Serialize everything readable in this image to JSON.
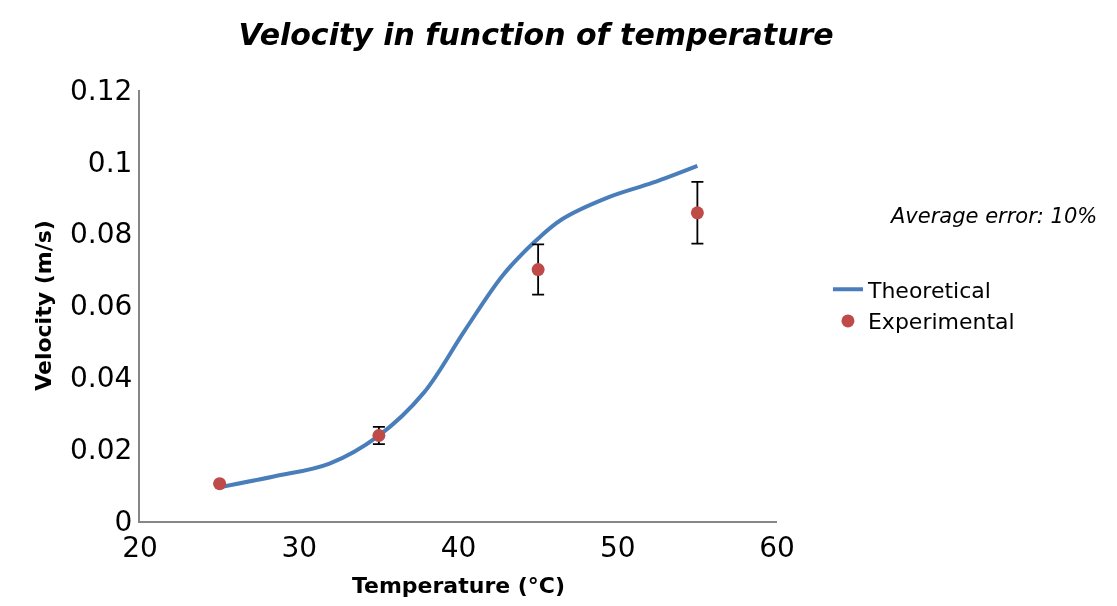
{
  "chart_data": {
    "type": "line",
    "title": "Velocity in function of temperature",
    "xlabel": "Temperature (°C)",
    "ylabel": "Velocity (m/s)",
    "xlim": [
      20,
      60
    ],
    "xticks": [
      20,
      30,
      40,
      50,
      60
    ],
    "ylim": [
      0,
      0.12
    ],
    "yticks": [
      0,
      0.02,
      0.04,
      0.06,
      0.08,
      0.1,
      0.12
    ],
    "legend": "right",
    "annotations": [
      "Average error: 10%"
    ],
    "series": [
      {
        "name": "Theoretical",
        "color": "#4a7ebb",
        "marker": "none",
        "line_style": "solid",
        "x": [
          25,
          28.4,
          31.9,
          35,
          37.8,
          40.4,
          42.8,
          44.8,
          46.5,
          49.4,
          52.2,
          55
        ],
        "values": [
          0.0094,
          0.0124,
          0.016,
          0.0238,
          0.0356,
          0.0531,
          0.0685,
          0.0778,
          0.084,
          0.0901,
          0.0942,
          0.0989
        ]
      },
      {
        "name": "Experimental",
        "type": "scatter",
        "color": "#be4b48",
        "marker": "circle",
        "x": [
          25,
          35,
          45,
          55
        ],
        "values": [
          0.0104,
          0.0238,
          0.07,
          0.0858
        ],
        "errors": [
          null,
          0.0024,
          0.007,
          0.0086
        ]
      }
    ]
  }
}
